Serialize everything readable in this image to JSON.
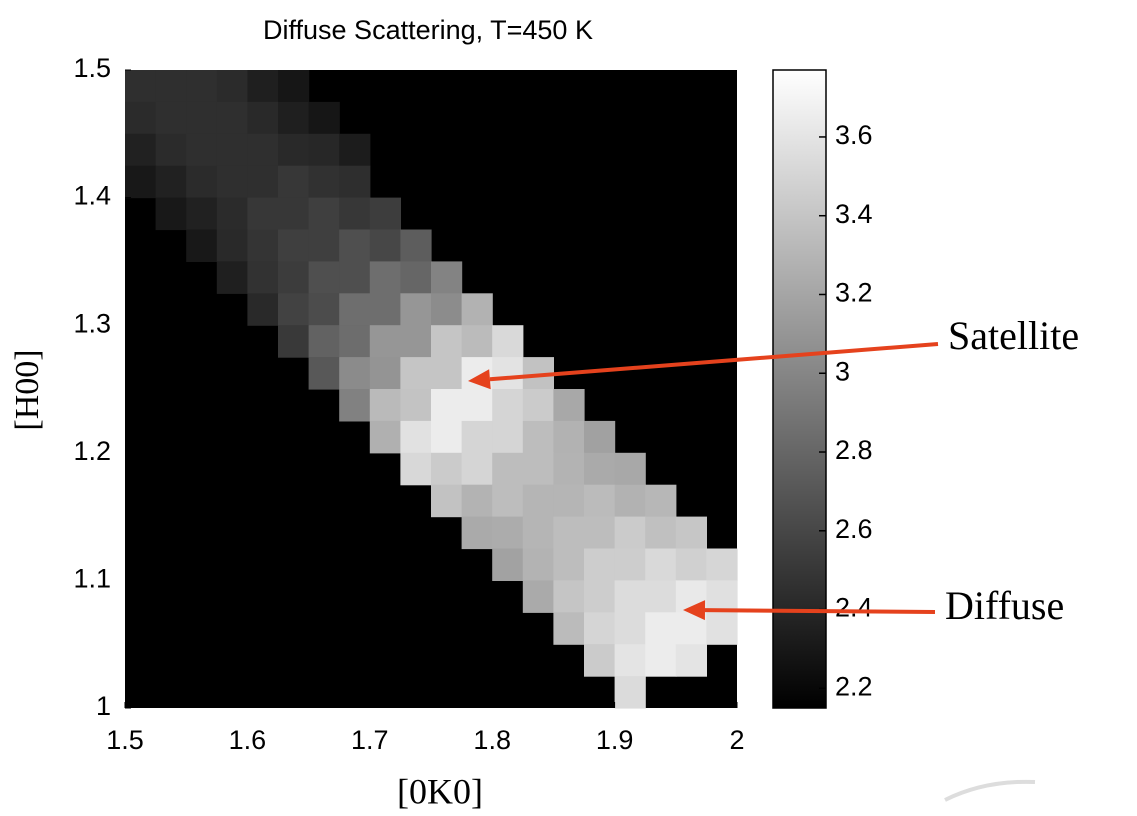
{
  "chart_data": {
    "type": "heatmap",
    "title": "Diffuse Scattering, T=450 K",
    "x_label": "[0K0]",
    "y_label": "[H00]",
    "xlim": [
      1.5,
      2
    ],
    "ylim": [
      1,
      1.5
    ],
    "xticks": [
      1.5,
      1.6,
      1.7,
      1.8,
      1.9,
      2
    ],
    "yticks": [
      1,
      1.1,
      1.2,
      1.3,
      1.4,
      1.5
    ],
    "zlim": [
      2.15,
      3.77
    ],
    "colorbar_ticks": [
      2.2,
      2.4,
      2.6,
      2.8,
      3,
      3.2,
      3.4,
      3.6
    ],
    "colormap": "gray",
    "background": "#000000",
    "x": [
      1.5125,
      1.5375,
      1.5625,
      1.5875,
      1.6125,
      1.6375,
      1.6625,
      1.6875,
      1.7125,
      1.7375,
      1.7625,
      1.7875,
      1.8125,
      1.8375,
      1.8625,
      1.8875,
      1.9125,
      1.9375,
      1.9625,
      1.9875
    ],
    "y": [
      1.4875,
      1.4625,
      1.4375,
      1.4125,
      1.3875,
      1.3625,
      1.3375,
      1.3125,
      1.2875,
      1.2625,
      1.2375,
      1.2125,
      1.1875,
      1.1625,
      1.1375,
      1.1125,
      1.0875,
      1.0625,
      1.0375,
      1.0125
    ],
    "z": [
      [
        2.45,
        2.45,
        2.45,
        2.42,
        2.35,
        2.29,
        null,
        null,
        null,
        null,
        null,
        null,
        null,
        null,
        null,
        null,
        null,
        null,
        null,
        null
      ],
      [
        2.42,
        2.45,
        2.45,
        2.45,
        2.41,
        2.35,
        2.29,
        null,
        null,
        null,
        null,
        null,
        null,
        null,
        null,
        null,
        null,
        null,
        null,
        null
      ],
      [
        2.36,
        2.42,
        2.45,
        2.45,
        2.45,
        2.41,
        2.4,
        2.33,
        null,
        null,
        null,
        null,
        null,
        null,
        null,
        null,
        null,
        null,
        null,
        null
      ],
      [
        2.3,
        2.36,
        2.42,
        2.45,
        2.45,
        2.5,
        2.46,
        2.44,
        null,
        null,
        null,
        null,
        null,
        null,
        null,
        null,
        null,
        null,
        null,
        null
      ],
      [
        null,
        2.3,
        2.36,
        2.42,
        2.5,
        2.5,
        2.55,
        2.5,
        2.54,
        null,
        null,
        null,
        null,
        null,
        null,
        null,
        null,
        null,
        null,
        null
      ],
      [
        null,
        null,
        2.3,
        2.41,
        2.48,
        2.55,
        2.55,
        2.65,
        2.6,
        2.74,
        null,
        null,
        null,
        null,
        null,
        null,
        null,
        null,
        null,
        null
      ],
      [
        null,
        null,
        null,
        2.35,
        2.47,
        2.53,
        2.65,
        2.65,
        2.85,
        2.8,
        2.98,
        null,
        null,
        null,
        null,
        null,
        null,
        null,
        null,
        null
      ],
      [
        null,
        null,
        null,
        null,
        2.41,
        2.57,
        2.63,
        2.85,
        2.85,
        3.1,
        3.04,
        3.28,
        null,
        null,
        null,
        null,
        null,
        null,
        null,
        null
      ],
      [
        null,
        null,
        null,
        null,
        null,
        2.51,
        2.77,
        2.84,
        3.1,
        3.1,
        3.4,
        3.34,
        3.53,
        null,
        null,
        null,
        null,
        null,
        null,
        null
      ],
      [
        null,
        null,
        null,
        null,
        null,
        null,
        2.71,
        3.03,
        3.09,
        3.4,
        3.4,
        3.65,
        3.59,
        3.38,
        null,
        null,
        null,
        null,
        null,
        null
      ],
      [
        null,
        null,
        null,
        null,
        null,
        null,
        null,
        2.97,
        3.33,
        3.39,
        3.65,
        3.65,
        3.5,
        3.44,
        3.22,
        null,
        null,
        null,
        null,
        null
      ],
      [
        null,
        null,
        null,
        null,
        null,
        null,
        null,
        null,
        3.27,
        3.58,
        3.65,
        3.5,
        3.5,
        3.35,
        3.28,
        3.17,
        null,
        null,
        null,
        null
      ],
      [
        null,
        null,
        null,
        null,
        null,
        null,
        null,
        null,
        null,
        3.52,
        3.44,
        3.5,
        3.35,
        3.35,
        3.29,
        3.23,
        3.22,
        null,
        null,
        null
      ],
      [
        null,
        null,
        null,
        null,
        null,
        null,
        null,
        null,
        null,
        null,
        3.38,
        3.29,
        3.35,
        3.3,
        3.3,
        3.34,
        3.28,
        3.31,
        null,
        null
      ],
      [
        null,
        null,
        null,
        null,
        null,
        null,
        null,
        null,
        null,
        null,
        null,
        3.23,
        3.24,
        3.3,
        3.35,
        3.35,
        3.44,
        3.37,
        3.41,
        null
      ],
      [
        null,
        null,
        null,
        null,
        null,
        null,
        null,
        null,
        null,
        null,
        null,
        null,
        3.18,
        3.29,
        3.35,
        3.45,
        3.45,
        3.53,
        3.47,
        3.51
      ],
      [
        null,
        null,
        null,
        null,
        null,
        null,
        null,
        null,
        null,
        null,
        null,
        null,
        null,
        3.23,
        3.4,
        3.45,
        3.55,
        3.55,
        3.63,
        3.57
      ],
      [
        null,
        null,
        null,
        null,
        null,
        null,
        null,
        null,
        null,
        null,
        null,
        null,
        null,
        null,
        3.34,
        3.5,
        3.55,
        3.65,
        3.65,
        3.58
      ],
      [
        null,
        null,
        null,
        null,
        null,
        null,
        null,
        null,
        null,
        null,
        null,
        null,
        null,
        null,
        null,
        3.44,
        3.6,
        3.65,
        3.6,
        null
      ],
      [
        null,
        null,
        null,
        null,
        null,
        null,
        null,
        null,
        null,
        null,
        null,
        null,
        null,
        null,
        null,
        null,
        3.54,
        null,
        null,
        null
      ]
    ],
    "annotations": [
      "Satellite",
      "Diffuse"
    ],
    "annotation_color": "#e5421d"
  }
}
